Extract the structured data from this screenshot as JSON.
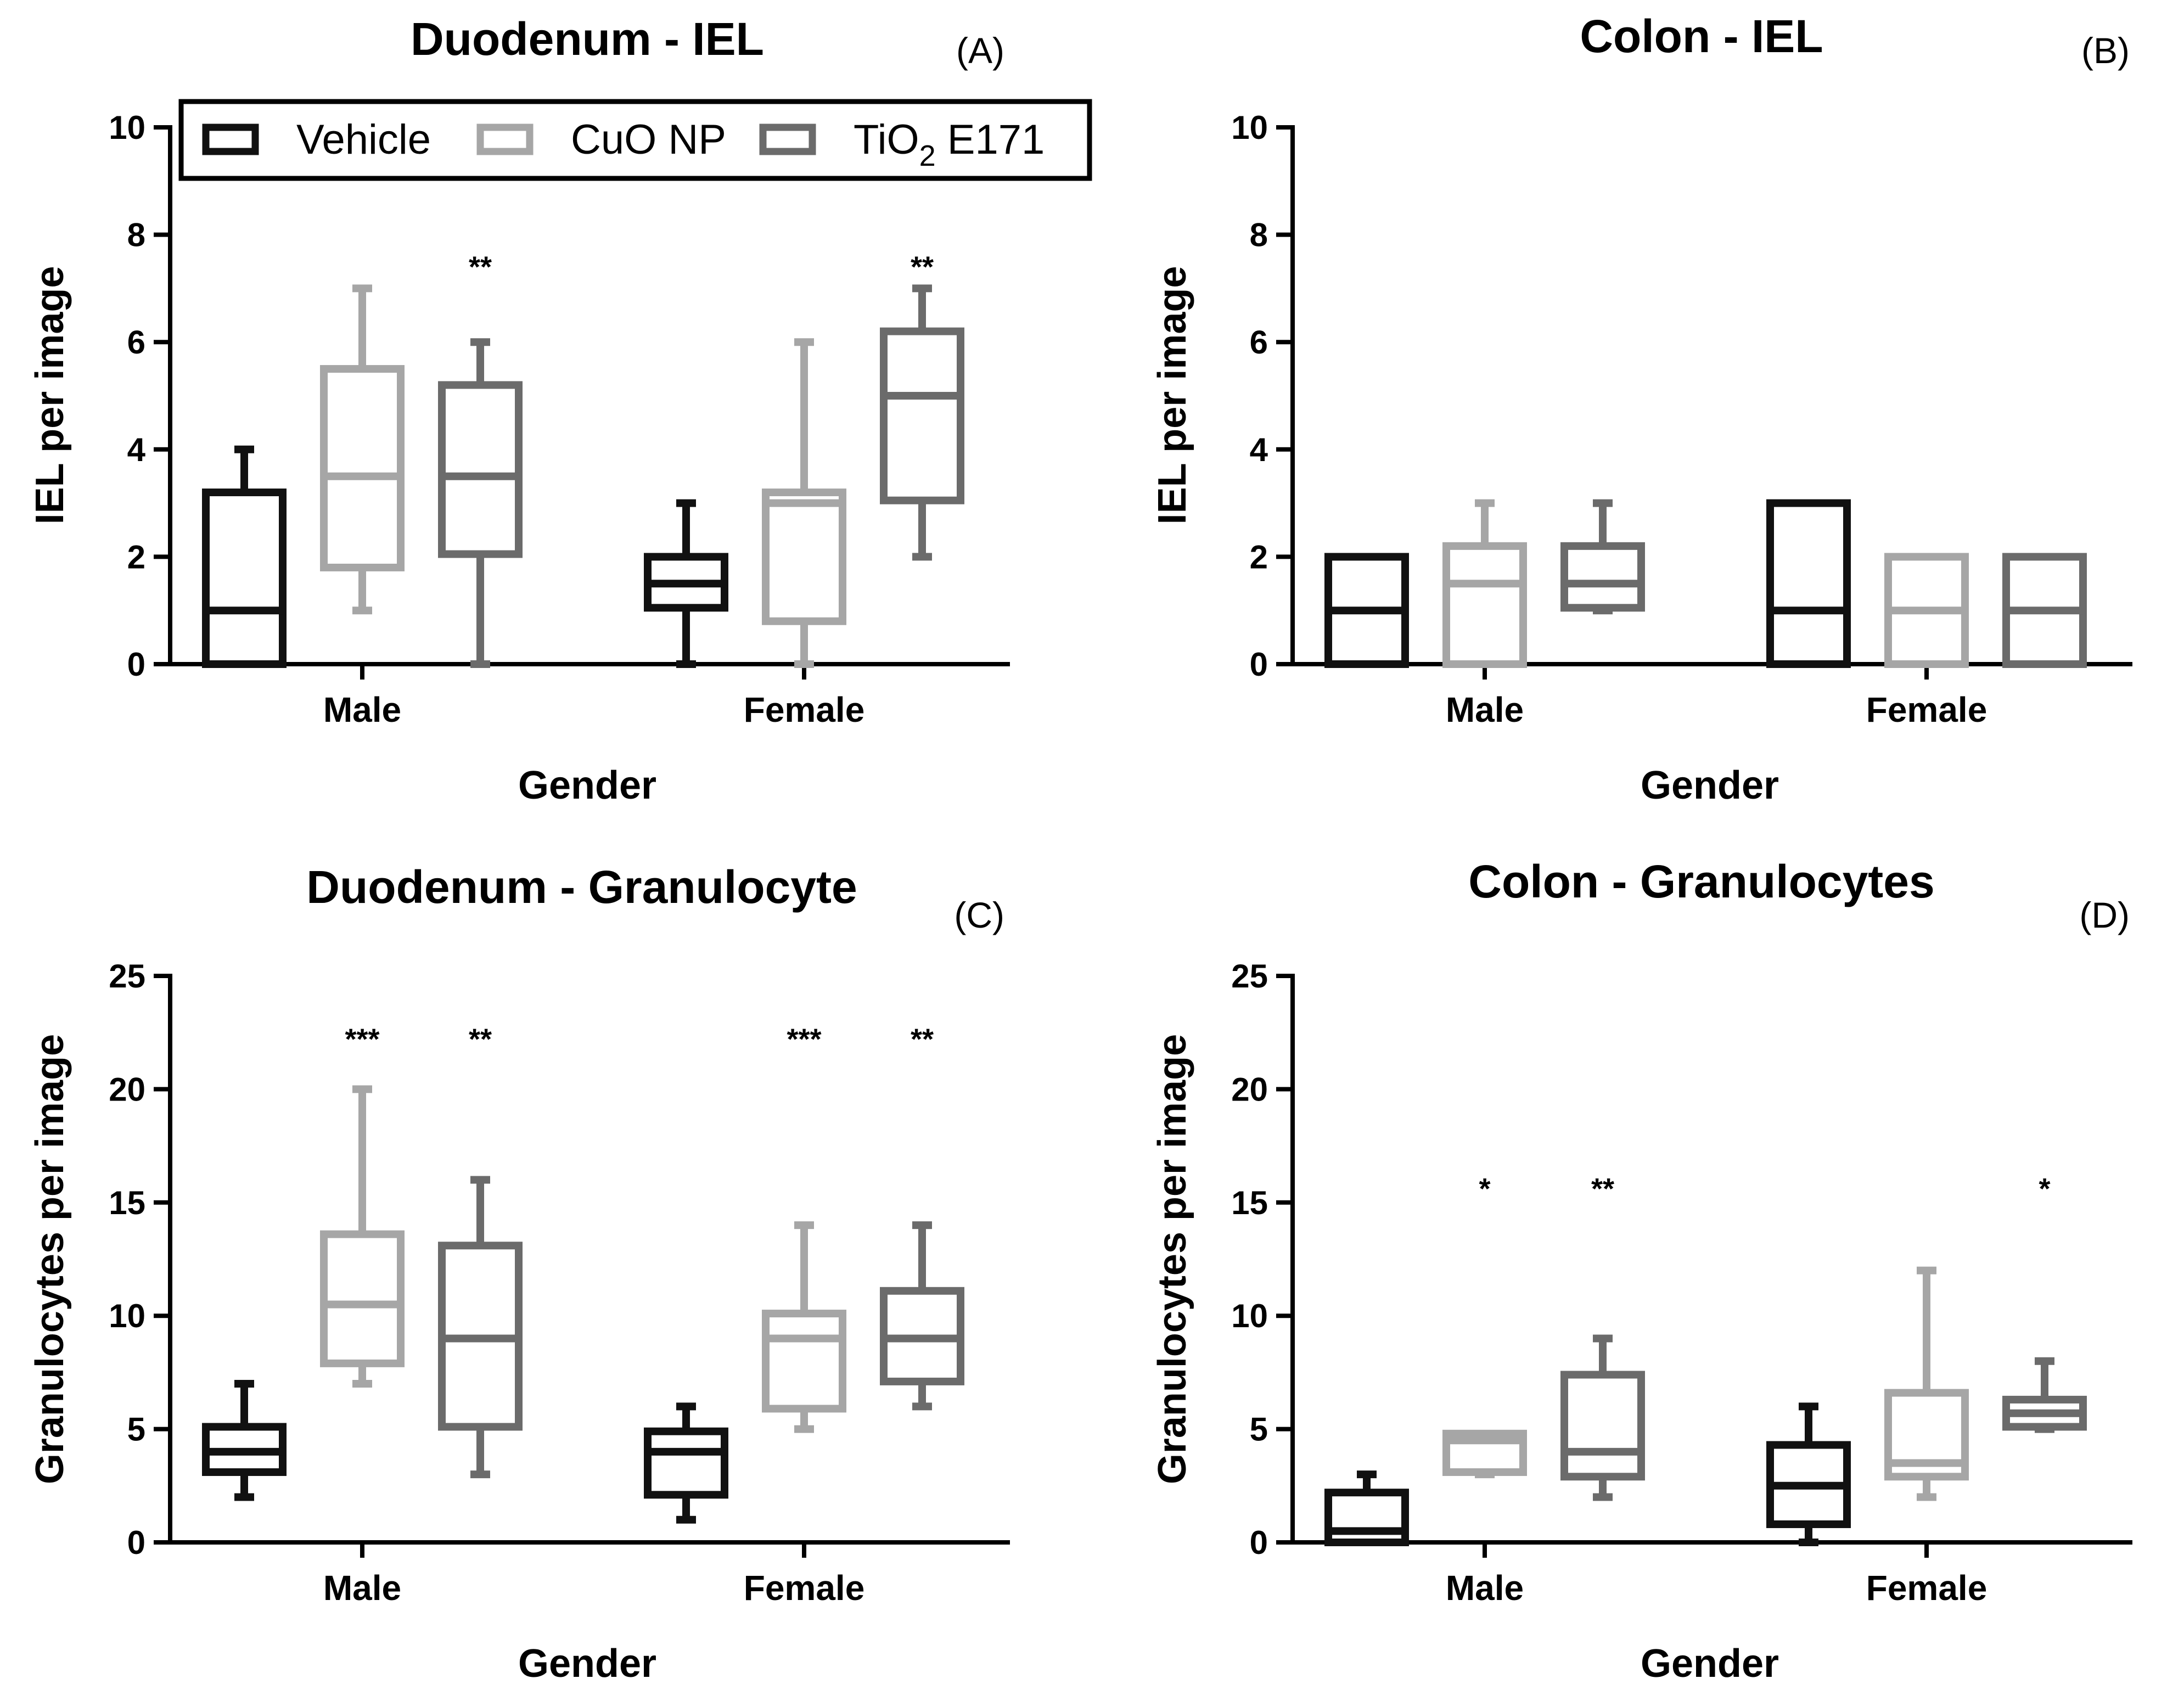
{
  "colors": {
    "Vehicle": "#111111",
    "CuO NP": "#a6a6a6",
    "TiO2 E171": "#6b6b6b"
  },
  "legend": {
    "position": "top-left of panel A",
    "items": [
      {
        "key": "Vehicle",
        "label": "Vehicle"
      },
      {
        "key": "CuO NP",
        "label": "CuO NP"
      },
      {
        "key": "TiO2 E171",
        "label_main": "TiO",
        "label_sub": "2",
        "label_tail": " E171"
      }
    ]
  },
  "chart_data": [
    {
      "id": "A",
      "type": "box",
      "title": "Duodenum - IEL",
      "letter": "(A)",
      "xlabel": "Gender",
      "ylabel": "IEL per image",
      "ylim": [
        0,
        10
      ],
      "yticks": [
        0,
        2,
        4,
        6,
        8,
        10
      ],
      "categories": [
        "Male",
        "Female"
      ],
      "series": [
        {
          "name": "Vehicle",
          "boxes": [
            {
              "min": 0,
              "q1": 0,
              "median": 1,
              "q3": 3.2,
              "max": 4,
              "sig": ""
            },
            {
              "min": 0,
              "q1": 1.05,
              "median": 1.5,
              "q3": 2,
              "max": 3,
              "sig": ""
            }
          ]
        },
        {
          "name": "CuO NP",
          "boxes": [
            {
              "min": 1,
              "q1": 1.8,
              "median": 3.5,
              "q3": 5.5,
              "max": 7,
              "sig": ""
            },
            {
              "min": 0,
              "q1": 0.8,
              "median": 3,
              "q3": 3.2,
              "max": 6,
              "sig": ""
            }
          ]
        },
        {
          "name": "TiO2 E171",
          "boxes": [
            {
              "min": 0,
              "q1": 2.05,
              "median": 3.5,
              "q3": 5.2,
              "max": 6,
              "sig": "**"
            },
            {
              "min": 2,
              "q1": 3.05,
              "median": 5,
              "q3": 6.2,
              "max": 7,
              "sig": "**"
            }
          ]
        }
      ]
    },
    {
      "id": "B",
      "type": "box",
      "title": "Colon - IEL",
      "letter": "(B)",
      "xlabel": "Gender",
      "ylabel": "IEL per image",
      "ylim": [
        0,
        10
      ],
      "yticks": [
        0,
        2,
        4,
        6,
        8,
        10
      ],
      "categories": [
        "Male",
        "Female"
      ],
      "series": [
        {
          "name": "Vehicle",
          "boxes": [
            {
              "min": 0,
              "q1": 0,
              "median": 1,
              "q3": 2,
              "max": 2,
              "sig": ""
            },
            {
              "min": 0,
              "q1": 0,
              "median": 1,
              "q3": 3,
              "max": 3,
              "sig": ""
            }
          ]
        },
        {
          "name": "CuO NP",
          "boxes": [
            {
              "min": 0,
              "q1": 0,
              "median": 1.5,
              "q3": 2.2,
              "max": 3,
              "sig": ""
            },
            {
              "min": 0,
              "q1": 0,
              "median": 1,
              "q3": 2,
              "max": 2,
              "sig": ""
            }
          ]
        },
        {
          "name": "TiO2 E171",
          "boxes": [
            {
              "min": 1,
              "q1": 1.05,
              "median": 1.5,
              "q3": 2.2,
              "max": 3,
              "sig": ""
            },
            {
              "min": 0,
              "q1": 0,
              "median": 1,
              "q3": 2,
              "max": 2,
              "sig": ""
            }
          ]
        }
      ]
    },
    {
      "id": "C",
      "type": "box",
      "title": "Duodenum - Granulocyte",
      "letter": "(C)",
      "xlabel": "Gender",
      "ylabel": "Granulocytes per image",
      "ylim": [
        0,
        25
      ],
      "yticks": [
        0,
        5,
        10,
        15,
        20,
        25
      ],
      "categories": [
        "Male",
        "Female"
      ],
      "series": [
        {
          "name": "Vehicle",
          "boxes": [
            {
              "min": 2,
              "q1": 3.1,
              "median": 4,
              "q3": 5.1,
              "max": 7,
              "sig": ""
            },
            {
              "min": 1,
              "q1": 2.1,
              "median": 4,
              "q3": 4.9,
              "max": 6,
              "sig": ""
            }
          ]
        },
        {
          "name": "CuO NP",
          "boxes": [
            {
              "min": 7,
              "q1": 7.9,
              "median": 10.5,
              "q3": 13.6,
              "max": 20,
              "sig": "***"
            },
            {
              "min": 5,
              "q1": 5.9,
              "median": 9,
              "q3": 10.1,
              "max": 14,
              "sig": "***"
            }
          ]
        },
        {
          "name": "TiO2 E171",
          "boxes": [
            {
              "min": 3,
              "q1": 5.1,
              "median": 9,
              "q3": 13.1,
              "max": 16,
              "sig": "**"
            },
            {
              "min": 6,
              "q1": 7.1,
              "median": 9,
              "q3": 11.1,
              "max": 14,
              "sig": "**"
            }
          ]
        }
      ]
    },
    {
      "id": "D",
      "type": "box",
      "title": "Colon - Granulocytes",
      "letter": "(D)",
      "xlabel": "Gender",
      "ylabel": "Granulocytes per image",
      "ylim": [
        0,
        25
      ],
      "yticks": [
        0,
        5,
        10,
        15,
        20,
        25
      ],
      "categories": [
        "Male",
        "Female"
      ],
      "series": [
        {
          "name": "Vehicle",
          "boxes": [
            {
              "min": 0,
              "q1": 0,
              "median": 0.5,
              "q3": 2.2,
              "max": 3,
              "sig": ""
            },
            {
              "min": 0,
              "q1": 0.8,
              "median": 2.5,
              "q3": 4.3,
              "max": 6,
              "sig": ""
            }
          ]
        },
        {
          "name": "CuO NP",
          "boxes": [
            {
              "min": 3,
              "q1": 3.1,
              "median": 4.5,
              "q3": 4.8,
              "max": 4.8,
              "sig": "*"
            },
            {
              "min": 2,
              "q1": 2.9,
              "median": 3.5,
              "q3": 6.6,
              "max": 12,
              "sig": ""
            }
          ]
        },
        {
          "name": "TiO2 E171",
          "boxes": [
            {
              "min": 2,
              "q1": 2.9,
              "median": 4,
              "q3": 7.4,
              "max": 9,
              "sig": "**"
            },
            {
              "min": 5,
              "q1": 5.1,
              "median": 5.7,
              "q3": 6.3,
              "max": 8,
              "sig": "*"
            }
          ]
        }
      ]
    }
  ]
}
